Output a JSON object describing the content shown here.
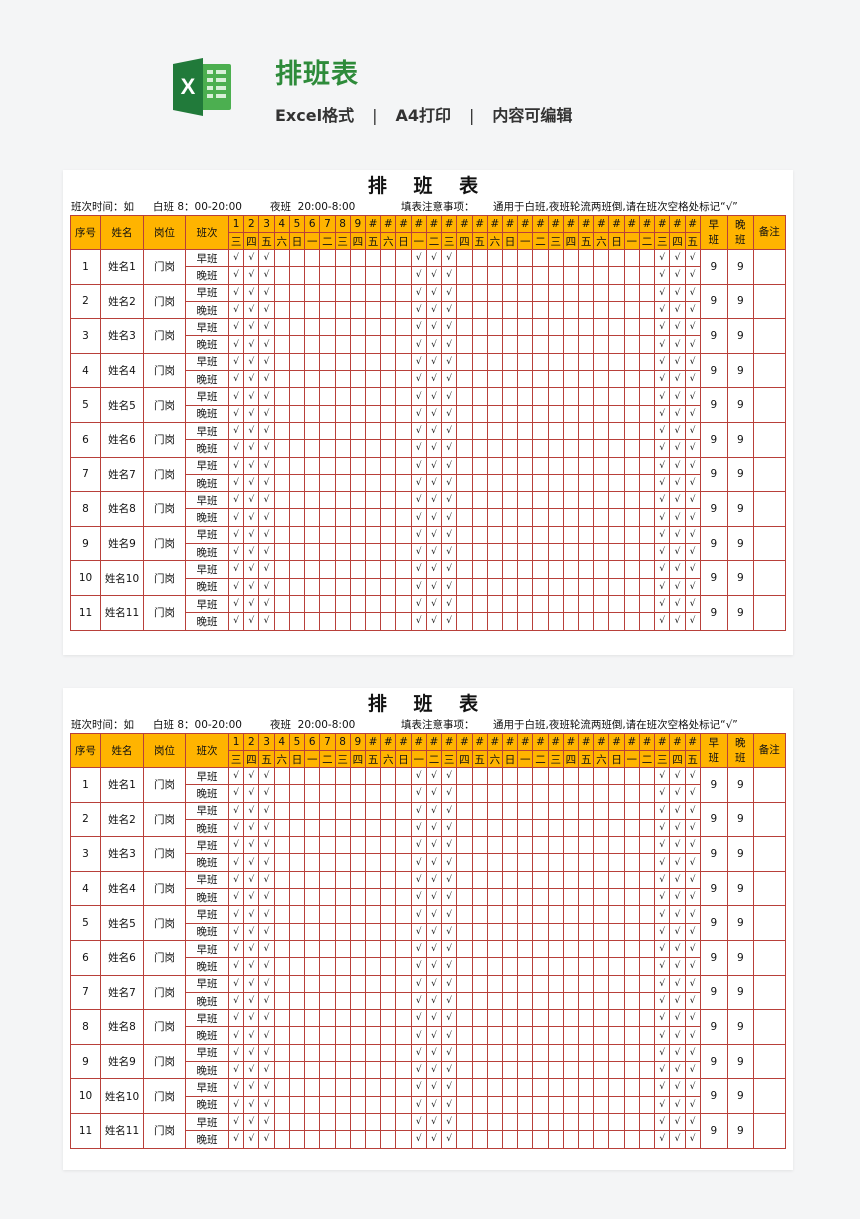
{
  "header": {
    "title": "排班表",
    "tags": [
      "Excel格式",
      "A4打印",
      "内容可编辑"
    ],
    "separator": "|",
    "logo_icon": "excel-icon",
    "brand_color": "#2e8b3a"
  },
  "sheet": {
    "title": "排 班 表",
    "info": {
      "shift_time_label": "班次时间：如",
      "day_shift": "白班 8：00-20:00",
      "night_shift": "夜班  20:00-8:00",
      "notes_label": "填表注意事项：",
      "notes": "通用于白班,夜班轮流两班倒,请在班次空格处标记“√”"
    },
    "columns": {
      "no": "序号",
      "name": "姓名",
      "post": "岗位",
      "shift": "班次",
      "early_total": "早\n班",
      "late_total": "晚\n班",
      "remark": "备注"
    },
    "day_labels": [
      "1",
      "2",
      "3",
      "4",
      "5",
      "6",
      "7",
      "8",
      "9",
      "#",
      "#",
      "#",
      "#",
      "#",
      "#",
      "#",
      "#",
      "#",
      "#",
      "#",
      "#",
      "#",
      "#",
      "#",
      "#",
      "#",
      "#",
      "#",
      "#",
      "#",
      "#"
    ],
    "weekdays": [
      "三",
      "四",
      "五",
      "六",
      "日",
      "一",
      "二",
      "三",
      "四",
      "五",
      "六",
      "日",
      "一",
      "二",
      "三",
      "四",
      "五",
      "六",
      "日",
      "一",
      "二",
      "三",
      "四",
      "五",
      "六",
      "日",
      "一",
      "二",
      "三",
      "四",
      "五"
    ],
    "checked_days": [
      1,
      2,
      3,
      13,
      14,
      15,
      29,
      30,
      31
    ],
    "check_mark": "√",
    "shift_names": [
      "早班",
      "晚班"
    ],
    "rows": [
      {
        "no": "1",
        "name": "姓名1",
        "post": "门岗",
        "early": "9",
        "late": "9"
      },
      {
        "no": "2",
        "name": "姓名2",
        "post": "门岗",
        "early": "9",
        "late": "9"
      },
      {
        "no": "3",
        "name": "姓名3",
        "post": "门岗",
        "early": "9",
        "late": "9"
      },
      {
        "no": "4",
        "name": "姓名4",
        "post": "门岗",
        "early": "9",
        "late": "9"
      },
      {
        "no": "5",
        "name": "姓名5",
        "post": "门岗",
        "early": "9",
        "late": "9"
      },
      {
        "no": "6",
        "name": "姓名6",
        "post": "门岗",
        "early": "9",
        "late": "9"
      },
      {
        "no": "7",
        "name": "姓名7",
        "post": "门岗",
        "early": "9",
        "late": "9"
      },
      {
        "no": "8",
        "name": "姓名8",
        "post": "门岗",
        "early": "9",
        "late": "9"
      },
      {
        "no": "9",
        "name": "姓名9",
        "post": "门岗",
        "early": "9",
        "late": "9"
      },
      {
        "no": "10",
        "name": "姓名10",
        "post": "门岗",
        "early": "9",
        "late": "9"
      },
      {
        "no": "11",
        "name": "姓名11",
        "post": "门岗",
        "early": "9",
        "late": "9"
      }
    ],
    "header_color": "#ffb400",
    "border_color": "#b8403a"
  }
}
